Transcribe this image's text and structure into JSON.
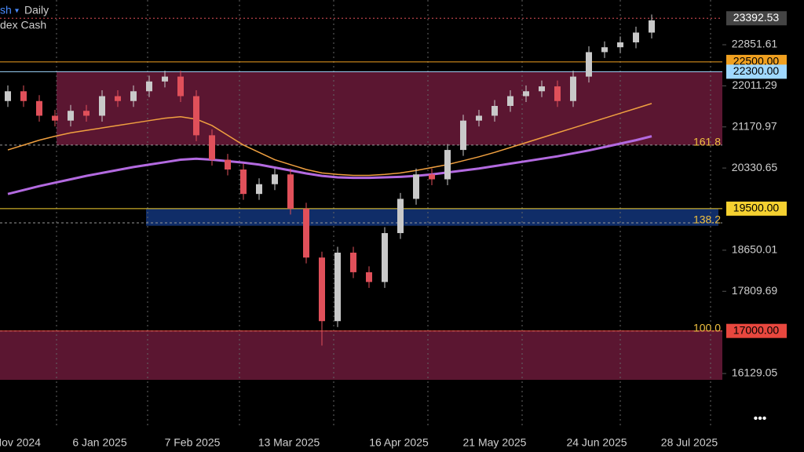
{
  "header": {
    "symbol": "sh",
    "timeframe": "Daily",
    "name": "dex Cash"
  },
  "menu": "•••",
  "chart_data": {
    "type": "candlestick",
    "x_labels": [
      "Nov 2024",
      "6 Jan 2025",
      "7 Feb 2025",
      "13 Mar 2025",
      "16 Apr 2025",
      "21 May 2025",
      "24 Jun 2025",
      "28 Jul 2025"
    ],
    "open": [
      21700,
      21900,
      21700,
      21400,
      21300,
      21500,
      21400,
      21800,
      21700,
      21900,
      22100,
      22200,
      21800,
      21000,
      20500,
      20300,
      19800,
      20000,
      20200,
      19500,
      18500,
      17200,
      18600,
      18200,
      18000,
      19000,
      19700,
      20200,
      20100,
      20700,
      21300,
      21400,
      21600,
      21800,
      21900,
      22000,
      21700,
      22200,
      22700,
      22800,
      22900,
      23100
    ],
    "high": [
      22020,
      22020,
      21820,
      21520,
      21620,
      21620,
      21920,
      21920,
      22020,
      22220,
      22320,
      22320,
      21920,
      21120,
      20620,
      20420,
      20120,
      20320,
      20320,
      19620,
      18620,
      18720,
      18720,
      18320,
      19120,
      19820,
      20320,
      20320,
      20820,
      21420,
      21520,
      21720,
      21920,
      22020,
      22120,
      22120,
      22320,
      22820,
      22920,
      23020,
      23220,
      23470
    ],
    "low": [
      21580,
      21580,
      21280,
      21180,
      21180,
      21280,
      21280,
      21580,
      21580,
      21780,
      21980,
      21680,
      20880,
      20380,
      20180,
      19680,
      19680,
      19880,
      19380,
      18380,
      16700,
      17080,
      18080,
      17880,
      17880,
      18880,
      19580,
      19980,
      19980,
      20580,
      21180,
      21280,
      21480,
      21680,
      21780,
      21580,
      21580,
      22080,
      22580,
      22680,
      22780,
      22980
    ],
    "close": [
      21900,
      21700,
      21400,
      21300,
      21500,
      21400,
      21800,
      21700,
      21900,
      22100,
      22200,
      21800,
      21000,
      20500,
      20300,
      19800,
      20000,
      20200,
      19500,
      18500,
      17200,
      18600,
      18200,
      18000,
      19000,
      19700,
      20200,
      20100,
      20700,
      21300,
      21400,
      21600,
      21800,
      21900,
      22000,
      21700,
      22200,
      22700,
      22800,
      22900,
      23100,
      23350
    ],
    "up_color": "#c9c9c9",
    "down_color": "#e0505a",
    "lines": [
      {
        "color": "#b36ae0",
        "values": [
          19800,
          19880,
          19960,
          20030,
          20100,
          20170,
          20230,
          20290,
          20350,
          20400,
          20450,
          20500,
          20520,
          20500,
          20470,
          20440,
          20400,
          20340,
          20280,
          20220,
          20170,
          20140,
          20130,
          20130,
          20140,
          20150,
          20170,
          20200,
          20240,
          20280,
          20320,
          20370,
          20420,
          20470,
          20520,
          20570,
          20630,
          20690,
          20760,
          20830,
          20900,
          20980
        ]
      },
      {
        "color": "#f0a040",
        "values": [
          20700,
          20800,
          20900,
          20980,
          21050,
          21100,
          21150,
          21200,
          21250,
          21300,
          21350,
          21380,
          21330,
          21200,
          21000,
          20800,
          20650,
          20500,
          20400,
          20300,
          20230,
          20200,
          20180,
          20180,
          20200,
          20230,
          20280,
          20340,
          20400,
          20480,
          20560,
          20650,
          20750,
          20850,
          20950,
          21050,
          21150,
          21250,
          21350,
          21450,
          21550,
          21650
        ]
      }
    ],
    "ylim": [
      15904,
      23766
    ],
    "yticks": [
      22851.61,
      22011.29,
      21170.97,
      20330.65,
      18650.01,
      17809.69,
      16129.05
    ],
    "zones": [
      {
        "from": 22300,
        "to": 20800,
        "color": "#6b1a3a"
      },
      {
        "from": 19500,
        "to": 19150,
        "color": "#13357a"
      },
      {
        "from": 17000,
        "to": 16000,
        "color": "#6b1a3a"
      }
    ],
    "fib_levels": [
      {
        "value": 20800,
        "label": "161.8"
      },
      {
        "value": 19210,
        "label": "138.2"
      },
      {
        "value": 17000,
        "label": "100.0"
      }
    ],
    "levels": [
      {
        "value": 23392.53,
        "color": "#444444",
        "text_color": "#ffffff"
      },
      {
        "value": 22500,
        "label": "22500.00",
        "color": "#f0a020",
        "text_color": "#000000"
      },
      {
        "value": 22300,
        "label": "22300.00",
        "color": "#9fd8ff",
        "text_color": "#000000"
      },
      {
        "value": 19500,
        "label": "19500.00",
        "color": "#f5d130",
        "text_color": "#000000"
      },
      {
        "value": 17000,
        "label": "17000.00",
        "color": "#e8473e",
        "text_color": "#000000"
      }
    ]
  }
}
